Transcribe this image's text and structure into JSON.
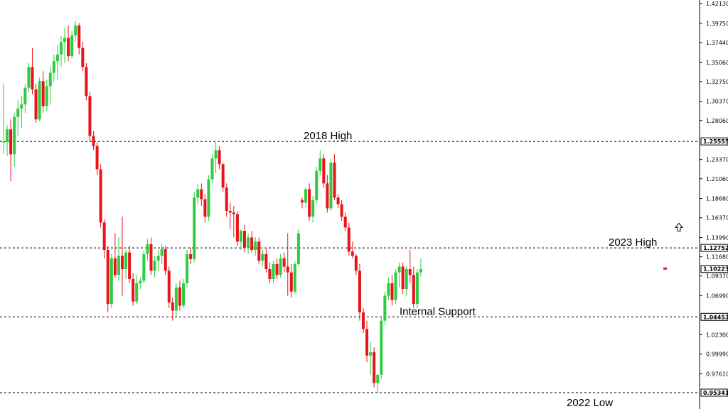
{
  "colors": {
    "background": "#ffffff",
    "bull": "#2ecc40",
    "bear": "#e8141a",
    "wick_bull": "#2ecc40",
    "wick_bear": "#e8141a",
    "level_line": "#000000",
    "axis_text": "#000000",
    "current_marker": "#e8141a"
  },
  "icons": {
    "arrow": "up-arrow-outline-icon"
  },
  "chart_data": {
    "type": "candlestick",
    "title": "",
    "xlabel": "",
    "ylabel": "",
    "ylim": [
      0.945,
      1.4213
    ],
    "grid": false,
    "y_ticks": [
      1.4213,
      1.3975,
      1.3744,
      1.3506,
      1.3275,
      1.3037,
      1.2806,
      1.2337,
      1.2106,
      1.1868,
      1.1637,
      1.1399,
      1.1168,
      1.0937,
      1.0699,
      1.023,
      0.9999,
      0.9761
    ],
    "y_tick_labels": [
      "1.42130",
      "1.39750",
      "1.37440",
      "1.35060",
      "1.32750",
      "1.30370",
      "1.28060",
      "1.23370",
      "1.21060",
      "1.18680",
      "1.16370",
      "1.13990",
      "1.11680",
      "1.09370",
      "1.06990",
      "1.02300",
      "0.99990",
      "0.97610"
    ],
    "levels": [
      {
        "value": 1.25555,
        "label": "1.25555",
        "annotation": "2018 High"
      },
      {
        "value": 1.12752,
        "label": "1.12752",
        "annotation": "2023 High"
      },
      {
        "value": 1.04453,
        "label": "1.04453",
        "annotation": "Internal Support"
      },
      {
        "value": 0.95341,
        "label": "0.95341",
        "annotation": "2022 Low"
      }
    ],
    "current_price": {
      "value": 1.10223,
      "label": "1.10223"
    },
    "candles": [
      [
        1.255,
        1.325,
        1.24,
        1.255
      ],
      [
        1.255,
        1.275,
        1.238,
        1.27
      ],
      [
        1.27,
        1.282,
        1.208,
        1.24
      ],
      [
        1.24,
        1.29,
        1.225,
        1.285
      ],
      [
        1.285,
        1.305,
        1.262,
        1.295
      ],
      [
        1.295,
        1.31,
        1.272,
        1.3
      ],
      [
        1.3,
        1.325,
        1.29,
        1.32
      ],
      [
        1.32,
        1.35,
        1.315,
        1.345
      ],
      [
        1.345,
        1.368,
        1.312,
        1.318
      ],
      [
        1.318,
        1.325,
        1.278,
        1.282
      ],
      [
        1.282,
        1.332,
        1.28,
        1.328
      ],
      [
        1.328,
        1.34,
        1.29,
        1.298
      ],
      [
        1.298,
        1.33,
        1.292,
        1.322
      ],
      [
        1.322,
        1.345,
        1.3,
        1.338
      ],
      [
        1.338,
        1.36,
        1.328,
        1.352
      ],
      [
        1.352,
        1.372,
        1.33,
        1.36
      ],
      [
        1.36,
        1.382,
        1.345,
        1.375
      ],
      [
        1.375,
        1.392,
        1.35,
        1.38
      ],
      [
        1.38,
        1.395,
        1.352,
        1.358
      ],
      [
        1.358,
        1.388,
        1.355,
        1.383
      ],
      [
        1.383,
        1.4,
        1.375,
        1.395
      ],
      [
        1.395,
        1.398,
        1.36,
        1.368
      ],
      [
        1.368,
        1.375,
        1.34,
        1.345
      ],
      [
        1.345,
        1.35,
        1.305,
        1.31
      ],
      [
        1.31,
        1.315,
        1.255,
        1.262
      ],
      [
        1.262,
        1.268,
        1.245,
        1.25
      ],
      [
        1.25,
        1.255,
        1.215,
        1.222
      ],
      [
        1.222,
        1.228,
        1.152,
        1.158
      ],
      [
        1.158,
        1.162,
        1.115,
        1.125
      ],
      [
        1.125,
        1.13,
        1.05,
        1.06
      ],
      [
        1.06,
        1.12,
        1.055,
        1.115
      ],
      [
        1.115,
        1.145,
        1.092,
        1.095
      ],
      [
        1.095,
        1.14,
        1.088,
        1.118
      ],
      [
        1.118,
        1.165,
        1.07,
        1.102
      ],
      [
        1.102,
        1.125,
        1.09,
        1.122
      ],
      [
        1.122,
        1.13,
        1.085,
        1.09
      ],
      [
        1.09,
        1.097,
        1.058,
        1.063
      ],
      [
        1.063,
        1.095,
        1.06,
        1.085
      ],
      [
        1.085,
        1.092,
        1.078,
        1.088
      ],
      [
        1.088,
        1.125,
        1.085,
        1.12
      ],
      [
        1.12,
        1.138,
        1.112,
        1.132
      ],
      [
        1.132,
        1.14,
        1.095,
        1.1
      ],
      [
        1.1,
        1.118,
        1.092,
        1.112
      ],
      [
        1.112,
        1.125,
        1.1,
        1.118
      ],
      [
        1.118,
        1.132,
        1.108,
        1.126
      ],
      [
        1.126,
        1.13,
        1.095,
        1.1
      ],
      [
        1.1,
        1.105,
        1.055,
        1.062
      ],
      [
        1.062,
        1.068,
        1.04,
        1.052
      ],
      [
        1.052,
        1.085,
        1.045,
        1.08
      ],
      [
        1.08,
        1.088,
        1.052,
        1.058
      ],
      [
        1.058,
        1.09,
        1.055,
        1.085
      ],
      [
        1.085,
        1.125,
        1.08,
        1.12
      ],
      [
        1.12,
        1.128,
        1.108,
        1.114
      ],
      [
        1.114,
        1.195,
        1.11,
        1.188
      ],
      [
        1.188,
        1.205,
        1.18,
        1.198
      ],
      [
        1.198,
        1.205,
        1.178,
        1.186
      ],
      [
        1.186,
        1.192,
        1.158,
        1.165
      ],
      [
        1.165,
        1.215,
        1.16,
        1.21
      ],
      [
        1.21,
        1.24,
        1.205,
        1.235
      ],
      [
        1.235,
        1.255,
        1.218,
        1.245
      ],
      [
        1.245,
        1.25,
        1.222,
        1.228
      ],
      [
        1.228,
        1.23,
        1.195,
        1.2
      ],
      [
        1.2,
        1.205,
        1.165,
        1.172
      ],
      [
        1.172,
        1.182,
        1.15,
        1.17
      ],
      [
        1.17,
        1.178,
        1.14,
        1.168
      ],
      [
        1.168,
        1.172,
        1.13,
        1.135
      ],
      [
        1.135,
        1.15,
        1.125,
        1.148
      ],
      [
        1.148,
        1.155,
        1.122,
        1.128
      ],
      [
        1.128,
        1.145,
        1.12,
        1.14
      ],
      [
        1.14,
        1.148,
        1.122,
        1.125
      ],
      [
        1.125,
        1.14,
        1.118,
        1.135
      ],
      [
        1.135,
        1.14,
        1.108,
        1.112
      ],
      [
        1.112,
        1.125,
        1.105,
        1.12
      ],
      [
        1.12,
        1.128,
        1.098,
        1.102
      ],
      [
        1.102,
        1.11,
        1.085,
        1.09
      ],
      [
        1.09,
        1.112,
        1.085,
        1.108
      ],
      [
        1.108,
        1.115,
        1.09,
        1.095
      ],
      [
        1.095,
        1.12,
        1.092,
        1.115
      ],
      [
        1.115,
        1.122,
        1.098,
        1.105
      ],
      [
        1.105,
        1.145,
        1.07,
        1.098
      ],
      [
        1.098,
        1.108,
        1.068,
        1.075
      ],
      [
        1.075,
        1.112,
        1.072,
        1.108
      ],
      [
        1.108,
        1.15,
        1.105,
        1.145
      ],
      [
        1.185,
        1.188,
        1.175,
        1.182
      ],
      [
        1.182,
        1.2,
        1.175,
        1.198
      ],
      [
        1.198,
        1.205,
        1.16,
        1.165
      ],
      [
        1.165,
        1.19,
        1.158,
        1.185
      ],
      [
        1.185,
        1.225,
        1.18,
        1.22
      ],
      [
        1.22,
        1.245,
        1.215,
        1.235
      ],
      [
        1.235,
        1.24,
        1.2,
        1.205
      ],
      [
        1.205,
        1.215,
        1.17,
        1.175
      ],
      [
        1.175,
        1.235,
        1.172,
        1.23
      ],
      [
        1.23,
        1.24,
        1.185,
        1.188
      ],
      [
        1.188,
        1.192,
        1.175,
        1.18
      ],
      [
        1.18,
        1.185,
        1.16,
        1.165
      ],
      [
        1.165,
        1.17,
        1.148,
        1.152
      ],
      [
        1.152,
        1.158,
        1.118,
        1.123
      ],
      [
        1.123,
        1.135,
        1.115,
        1.118
      ],
      [
        1.118,
        1.12,
        1.095,
        1.1
      ],
      [
        1.1,
        1.108,
        1.04,
        1.05
      ],
      [
        1.05,
        1.055,
        1.025,
        1.03
      ],
      [
        1.03,
        1.04,
        0.99,
        0.998
      ],
      [
        0.998,
        1.015,
        0.975,
        1.002
      ],
      [
        1.002,
        1.008,
        0.96,
        0.965
      ],
      [
        0.965,
        0.975,
        0.953,
        0.975
      ],
      [
        0.975,
        1.045,
        0.97,
        1.04
      ],
      [
        1.04,
        1.075,
        1.035,
        1.07
      ],
      [
        1.07,
        1.092,
        1.065,
        1.085
      ],
      [
        1.085,
        1.095,
        1.058,
        1.065
      ],
      [
        1.065,
        1.102,
        1.06,
        1.098
      ],
      [
        1.098,
        1.11,
        1.08,
        1.105
      ],
      [
        1.105,
        1.11,
        1.072,
        1.078
      ],
      [
        1.078,
        1.105,
        1.07,
        1.102
      ],
      [
        1.102,
        1.125,
        1.085,
        1.095
      ],
      [
        1.095,
        1.105,
        1.055,
        1.06
      ],
      [
        1.06,
        1.102,
        1.055,
        1.098
      ],
      [
        1.098,
        1.115,
        1.093,
        1.102
      ]
    ]
  }
}
